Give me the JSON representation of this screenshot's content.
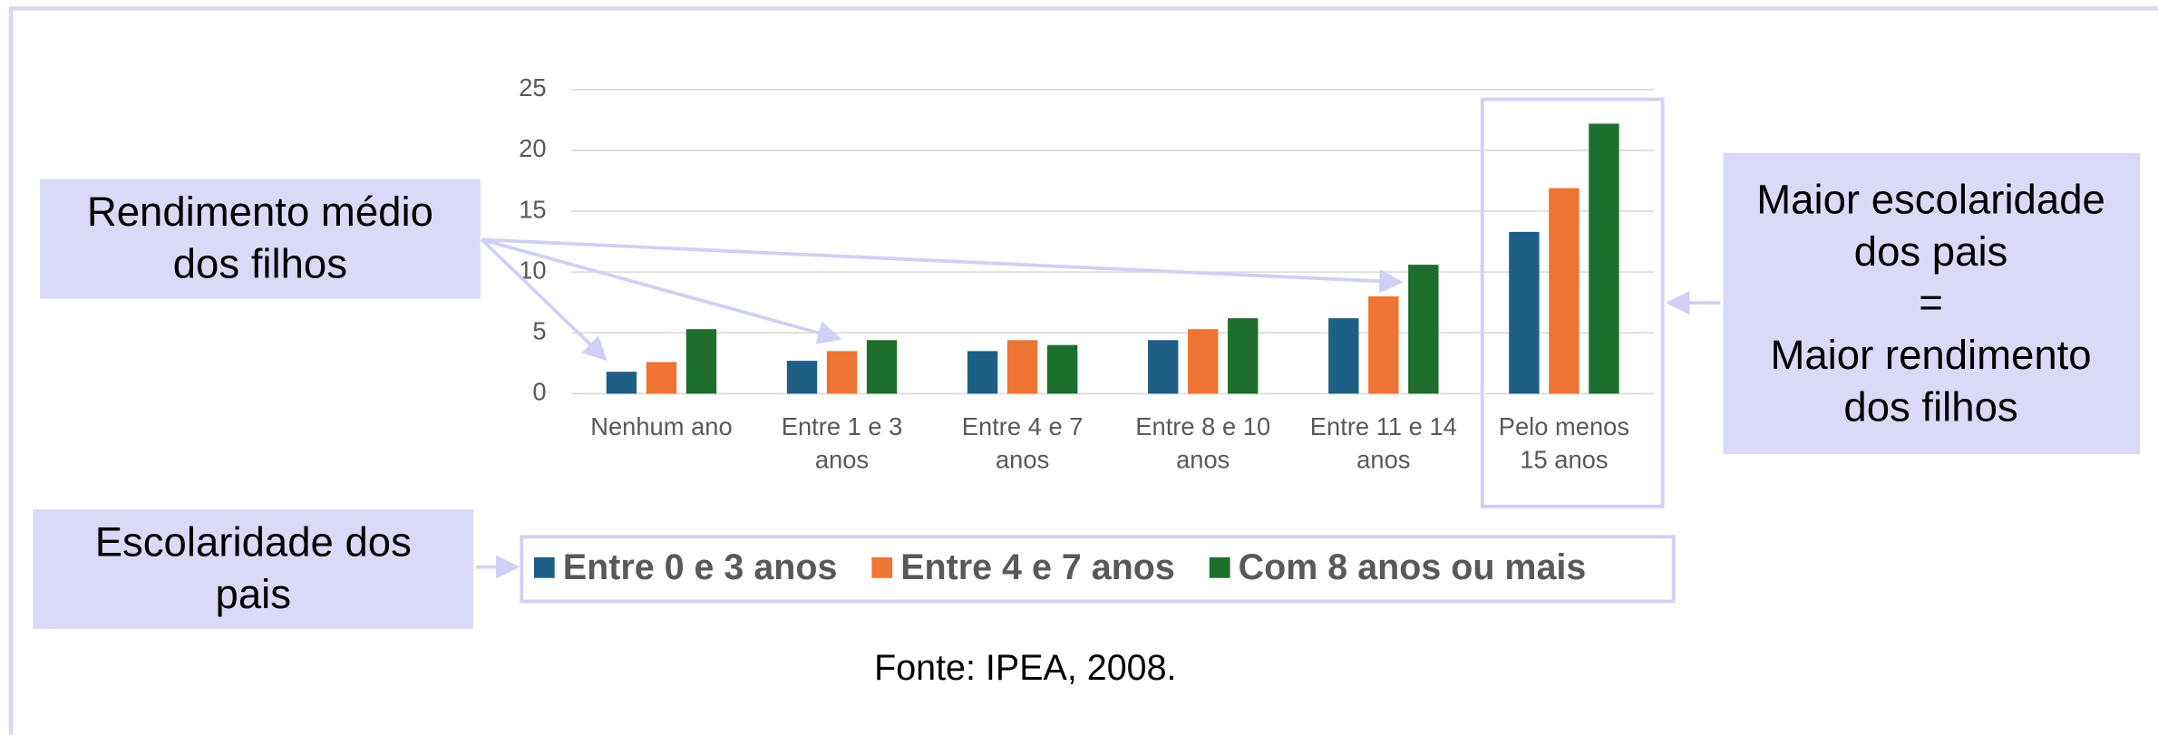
{
  "chart_data": {
    "type": "bar",
    "categories": [
      "Nenhum ano",
      "Entre 1 e 3 anos",
      "Entre 4 e 7 anos",
      "Entre 8 e 10 anos",
      "Entre 11 e 14 anos",
      "Pelo menos 15 anos"
    ],
    "series": [
      {
        "name": "Entre 0 e 3 anos",
        "color": "#1f5f86",
        "values": [
          1.8,
          2.7,
          3.5,
          4.4,
          6.2,
          13.3
        ]
      },
      {
        "name": "Entre 4 e 7 anos",
        "color": "#ed7433",
        "values": [
          2.6,
          3.5,
          4.4,
          5.3,
          8.0,
          16.9
        ]
      },
      {
        "name": "Com 8 anos ou mais",
        "color": "#1e6e2e",
        "values": [
          5.3,
          4.4,
          4.0,
          6.2,
          10.6,
          22.2
        ]
      }
    ],
    "ylim": [
      0,
      25
    ],
    "yticks": [
      0,
      5,
      10,
      15,
      20,
      25
    ],
    "grid": true,
    "legend": "bottom"
  },
  "annotations": {
    "income_label": [
      "Rendimento médio",
      "dos filhos"
    ],
    "schooling_label": [
      "Escolaridade dos",
      "pais"
    ],
    "conclusion": [
      "Maior escolaridade",
      "dos pais",
      "=",
      "Maior rendimento",
      "dos filhos"
    ],
    "source": "Fonte: IPEA, 2008."
  }
}
